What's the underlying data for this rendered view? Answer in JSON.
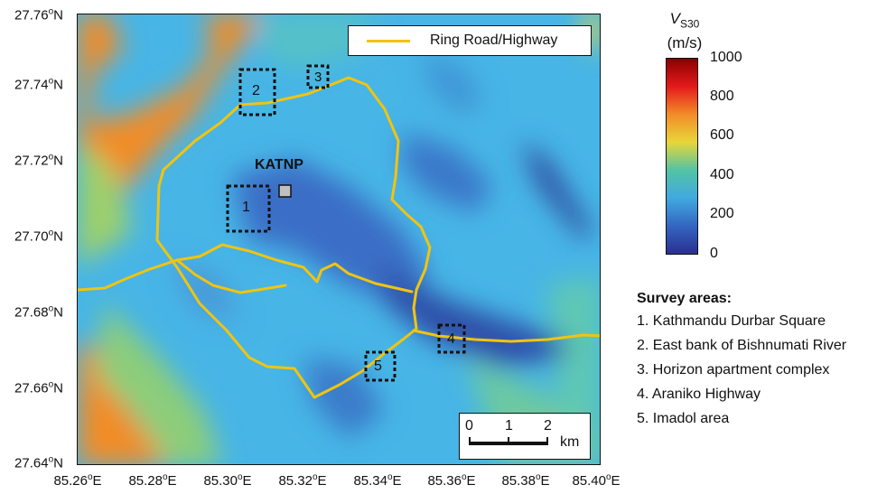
{
  "map": {
    "legend_label": "Ring Road/Highway",
    "station_label": "KATNP",
    "survey_boxes": [
      "1",
      "2",
      "3",
      "4",
      "5"
    ],
    "scale": {
      "ticks": [
        "0",
        "1",
        "2"
      ],
      "unit": "km"
    },
    "road_color": "#f1c40f"
  },
  "axes": {
    "lat_ticks": [
      "27.76",
      "27.74",
      "27.72",
      "27.70",
      "27.68",
      "27.66",
      "27.64"
    ],
    "lat_suffix": "N",
    "lon_ticks": [
      "85.26",
      "85.28",
      "85.30",
      "85.32",
      "85.34",
      "85.36",
      "85.38",
      "85.40"
    ],
    "lon_suffix": "E",
    "degree_mark": "o"
  },
  "colorbar": {
    "title_main": "V",
    "title_sub": "S30",
    "units": "(m/s)",
    "ticks": [
      "1000",
      "800",
      "600",
      "400",
      "200",
      "0"
    ],
    "colors": [
      "#8b0000",
      "#e41a1c",
      "#f28c28",
      "#e8d63a",
      "#53c3a5",
      "#41a9df",
      "#3366c2",
      "#2b2f8f"
    ]
  },
  "survey_areas": {
    "title": "Survey areas:",
    "items": [
      "1. Kathmandu Durbar Square",
      "2. East bank of Bishnumati River",
      "3. Horizon apartment complex",
      "4. Araniko Highway",
      "5. Imadol area"
    ]
  }
}
